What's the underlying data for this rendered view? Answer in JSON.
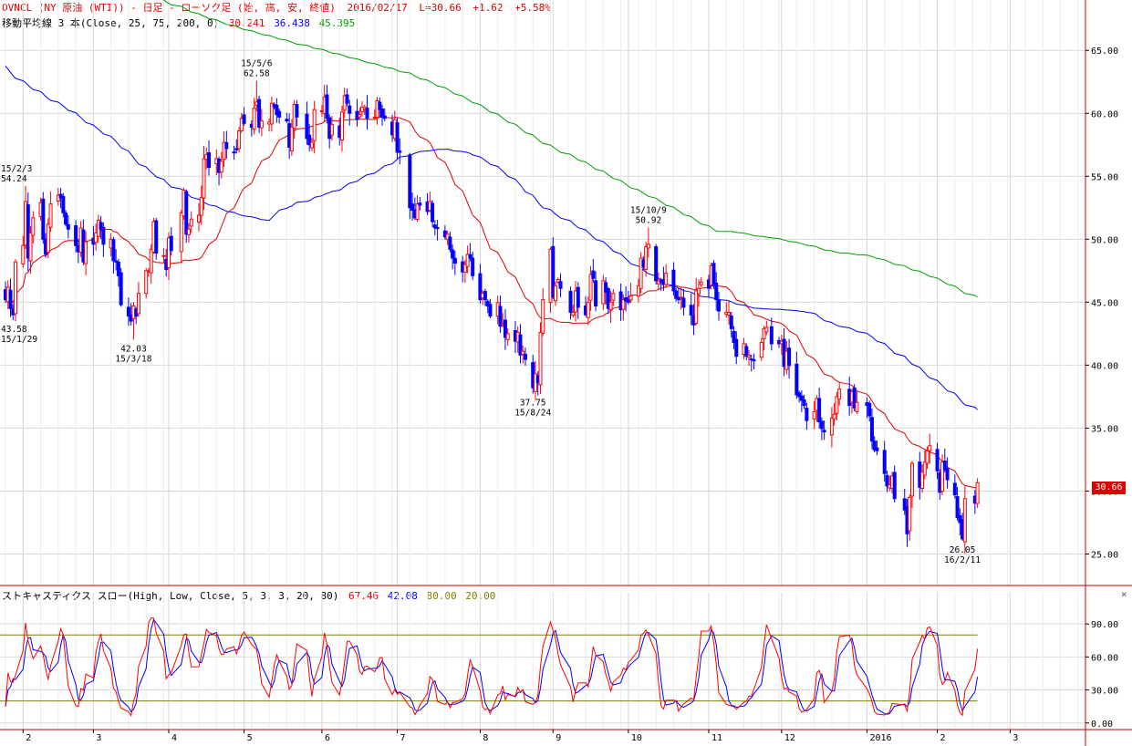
{
  "header": {
    "line1": {
      "symbol": "OVNCL (NY 原油 (WTI)) - 日足 - ローソク足 (始, 高, 安, 終値)",
      "date": "2016/02/17",
      "last": "L=30.66",
      "change": "+1.62",
      "pct": "+5.58%"
    },
    "line2": {
      "label": "移動平均線 3 本(Close, 25, 75, 200, 0)",
      "ma25": "30.241",
      "ma75": "36.438",
      "ma200": "45.395"
    }
  },
  "stoch_header": {
    "label": "ストキャスティクス スロー(High, Low, Close, 5, 3, 3, 20, 80)",
    "k": "67.46",
    "d": "42.08",
    "upper": "80.00",
    "lower": "20.00"
  },
  "close_tag": "30.66",
  "close_button": "×",
  "colors": {
    "up_candle": "#ff0000",
    "down_candle": "#0000ff",
    "ma25": "#e00000",
    "ma75": "#0000ff",
    "ma200": "#00a000",
    "stoch_k": "#ff0000",
    "stoch_d": "#0000ff",
    "levels": "#808000",
    "grid": "#d8d8d8",
    "separator": "#c00000"
  },
  "chart_data": [
    {
      "type": "candlestick",
      "title": "OVNCL (NY 原油 (WTI)) - 日足 - ローソク足 (始, 高, 安, 終値)",
      "ylim": [
        22.5,
        69.0
      ],
      "yticks": [
        "25.00",
        "30.00",
        "35.00",
        "40.00",
        "45.00",
        "50.00",
        "55.00",
        "60.00",
        "65.00"
      ],
      "xticks": [
        "2",
        "3",
        "4",
        "5",
        "6",
        "7",
        "8",
        "9",
        "10",
        "11",
        "12",
        "2016",
        "2",
        "3"
      ],
      "xtick_dates": [
        "2015-02-02",
        "2015-03-02",
        "2015-04-01",
        "2015-05-01",
        "2015-06-01",
        "2015-07-01",
        "2015-08-03",
        "2015-09-01",
        "2015-10-01",
        "2015-11-02",
        "2015-12-01",
        "2016-01-04",
        "2016-02-01",
        "2016-03-01"
      ],
      "x_range": [
        "2015-01-26",
        "2016-03-31"
      ],
      "grid": true,
      "closes": [
        [
          "2015-01-26",
          45.2
        ],
        [
          "2015-01-27",
          46.2
        ],
        [
          "2015-01-28",
          44.5
        ],
        [
          "2015-01-29",
          44.0
        ],
        [
          "2015-01-30",
          48.2
        ],
        [
          "2015-02-02",
          49.5
        ],
        [
          "2015-02-03",
          53.0
        ],
        [
          "2015-02-04",
          48.5
        ],
        [
          "2015-02-05",
          50.5
        ],
        [
          "2015-02-06",
          51.7
        ],
        [
          "2015-02-09",
          52.9
        ],
        [
          "2015-02-10",
          50.0
        ],
        [
          "2015-02-11",
          48.8
        ],
        [
          "2015-02-12",
          51.2
        ],
        [
          "2015-02-13",
          52.8
        ],
        [
          "2015-02-16",
          53.5
        ],
        [
          "2015-02-17",
          53.3
        ],
        [
          "2015-02-18",
          52.1
        ],
        [
          "2015-02-19",
          51.2
        ],
        [
          "2015-02-20",
          50.8
        ],
        [
          "2015-02-23",
          49.5
        ],
        [
          "2015-02-24",
          49.0
        ],
        [
          "2015-02-25",
          50.9
        ],
        [
          "2015-02-26",
          48.2
        ],
        [
          "2015-02-27",
          49.8
        ],
        [
          "2015-03-02",
          49.6
        ],
        [
          "2015-03-03",
          50.5
        ],
        [
          "2015-03-04",
          51.5
        ],
        [
          "2015-03-05",
          50.8
        ],
        [
          "2015-03-06",
          49.6
        ],
        [
          "2015-03-09",
          50.0
        ],
        [
          "2015-03-10",
          48.3
        ],
        [
          "2015-03-11",
          48.2
        ],
        [
          "2015-03-12",
          47.1
        ],
        [
          "2015-03-13",
          44.8
        ],
        [
          "2015-03-16",
          43.9
        ],
        [
          "2015-03-17",
          43.5
        ],
        [
          "2015-03-18",
          44.7
        ],
        [
          "2015-03-19",
          43.9
        ],
        [
          "2015-03-20",
          45.7
        ],
        [
          "2015-03-23",
          47.5
        ],
        [
          "2015-03-24",
          47.5
        ],
        [
          "2015-03-25",
          49.2
        ],
        [
          "2015-03-26",
          51.4
        ],
        [
          "2015-03-27",
          48.9
        ],
        [
          "2015-03-30",
          48.7
        ],
        [
          "2015-03-31",
          47.6
        ],
        [
          "2015-04-01",
          50.1
        ],
        [
          "2015-04-02",
          49.1
        ],
        [
          "2015-04-06",
          52.1
        ],
        [
          "2015-04-07",
          53.9
        ],
        [
          "2015-04-08",
          50.4
        ],
        [
          "2015-04-09",
          50.8
        ],
        [
          "2015-04-10",
          51.6
        ],
        [
          "2015-04-13",
          51.9
        ],
        [
          "2015-04-14",
          53.3
        ],
        [
          "2015-04-15",
          56.4
        ],
        [
          "2015-04-16",
          56.7
        ],
        [
          "2015-04-17",
          55.7
        ],
        [
          "2015-04-20",
          56.4
        ],
        [
          "2015-04-21",
          55.3
        ],
        [
          "2015-04-22",
          56.2
        ],
        [
          "2015-04-23",
          57.7
        ],
        [
          "2015-04-24",
          57.2
        ],
        [
          "2015-04-27",
          56.9
        ],
        [
          "2015-04-28",
          57.1
        ],
        [
          "2015-04-29",
          58.6
        ],
        [
          "2015-04-30",
          59.6
        ],
        [
          "2015-05-01",
          59.2
        ],
        [
          "2015-05-04",
          58.9
        ],
        [
          "2015-05-05",
          60.4
        ],
        [
          "2015-05-06",
          60.9
        ],
        [
          "2015-05-07",
          58.9
        ],
        [
          "2015-05-08",
          59.4
        ],
        [
          "2015-05-11",
          59.3
        ],
        [
          "2015-05-12",
          60.8
        ],
        [
          "2015-05-13",
          60.5
        ],
        [
          "2015-05-14",
          59.9
        ],
        [
          "2015-05-15",
          59.7
        ],
        [
          "2015-05-18",
          59.4
        ],
        [
          "2015-05-19",
          57.3
        ],
        [
          "2015-05-20",
          58.9
        ],
        [
          "2015-05-21",
          60.7
        ],
        [
          "2015-05-22",
          59.7
        ],
        [
          "2015-05-26",
          58.0
        ],
        [
          "2015-05-27",
          57.5
        ],
        [
          "2015-05-28",
          57.7
        ],
        [
          "2015-05-29",
          60.3
        ],
        [
          "2015-06-01",
          60.2
        ],
        [
          "2015-06-02",
          61.3
        ],
        [
          "2015-06-03",
          59.6
        ],
        [
          "2015-06-04",
          58.0
        ],
        [
          "2015-06-05",
          59.1
        ],
        [
          "2015-06-08",
          58.1
        ],
        [
          "2015-06-09",
          60.1
        ],
        [
          "2015-06-10",
          61.4
        ],
        [
          "2015-06-11",
          60.8
        ],
        [
          "2015-06-12",
          60.0
        ],
        [
          "2015-06-15",
          59.5
        ],
        [
          "2015-06-16",
          59.9
        ],
        [
          "2015-06-17",
          60.5
        ],
        [
          "2015-06-18",
          60.5
        ],
        [
          "2015-06-19",
          59.6
        ],
        [
          "2015-06-22",
          59.7
        ],
        [
          "2015-06-23",
          61.0
        ],
        [
          "2015-06-24",
          60.3
        ],
        [
          "2015-06-25",
          59.7
        ],
        [
          "2015-06-26",
          59.6
        ],
        [
          "2015-06-29",
          58.3
        ],
        [
          "2015-06-30",
          59.5
        ],
        [
          "2015-07-01",
          56.9
        ],
        [
          "2015-07-02",
          56.9
        ],
        [
          "2015-07-06",
          52.5
        ],
        [
          "2015-07-07",
          52.3
        ],
        [
          "2015-07-08",
          51.7
        ],
        [
          "2015-07-09",
          52.8
        ],
        [
          "2015-07-10",
          52.7
        ],
        [
          "2015-07-13",
          52.2
        ],
        [
          "2015-07-14",
          53.0
        ],
        [
          "2015-07-15",
          51.4
        ],
        [
          "2015-07-16",
          50.9
        ],
        [
          "2015-07-17",
          50.9
        ],
        [
          "2015-07-20",
          50.2
        ],
        [
          "2015-07-21",
          50.4
        ],
        [
          "2015-07-22",
          49.2
        ],
        [
          "2015-07-23",
          48.5
        ],
        [
          "2015-07-24",
          48.1
        ],
        [
          "2015-07-27",
          47.4
        ],
        [
          "2015-07-28",
          47.98
        ],
        [
          "2015-07-29",
          48.8
        ],
        [
          "2015-07-30",
          48.5
        ],
        [
          "2015-07-31",
          47.1
        ],
        [
          "2015-08-03",
          45.2
        ],
        [
          "2015-08-04",
          45.7
        ],
        [
          "2015-08-05",
          45.2
        ],
        [
          "2015-08-06",
          44.7
        ],
        [
          "2015-08-07",
          43.9
        ],
        [
          "2015-08-10",
          44.96
        ],
        [
          "2015-08-11",
          43.1
        ],
        [
          "2015-08-12",
          43.3
        ],
        [
          "2015-08-13",
          42.2
        ],
        [
          "2015-08-14",
          42.5
        ],
        [
          "2015-08-17",
          41.9
        ],
        [
          "2015-08-18",
          42.6
        ],
        [
          "2015-08-19",
          40.8
        ],
        [
          "2015-08-20",
          41.1
        ],
        [
          "2015-08-21",
          40.45
        ],
        [
          "2015-08-24",
          38.2
        ],
        [
          "2015-08-25",
          39.3
        ],
        [
          "2015-08-26",
          38.6
        ],
        [
          "2015-08-27",
          42.6
        ],
        [
          "2015-08-28",
          45.2
        ],
        [
          "2015-08-31",
          49.2
        ],
        [
          "2015-09-01",
          45.4
        ],
        [
          "2015-09-02",
          46.3
        ],
        [
          "2015-09-03",
          46.8
        ],
        [
          "2015-09-04",
          46.1
        ],
        [
          "2015-09-08",
          44.2
        ],
        [
          "2015-09-09",
          44.2
        ],
        [
          "2015-09-10",
          45.9
        ],
        [
          "2015-09-11",
          44.6
        ],
        [
          "2015-09-14",
          44.0
        ],
        [
          "2015-09-15",
          45.0
        ],
        [
          "2015-09-16",
          47.2
        ],
        [
          "2015-09-17",
          46.9
        ],
        [
          "2015-09-18",
          44.7
        ],
        [
          "2015-09-21",
          46.7
        ],
        [
          "2015-09-22",
          45.8
        ],
        [
          "2015-09-23",
          44.5
        ],
        [
          "2015-09-24",
          45.0
        ],
        [
          "2015-09-25",
          45.7
        ],
        [
          "2015-09-28",
          44.4
        ],
        [
          "2015-09-29",
          45.2
        ],
        [
          "2015-09-30",
          45.1
        ],
        [
          "2015-10-01",
          45.0
        ],
        [
          "2015-10-02",
          45.5
        ],
        [
          "2015-10-05",
          46.3
        ],
        [
          "2015-10-06",
          48.5
        ],
        [
          "2015-10-07",
          47.8
        ],
        [
          "2015-10-08",
          49.4
        ],
        [
          "2015-10-09",
          49.6
        ],
        [
          "2015-10-12",
          46.7
        ],
        [
          "2015-10-13",
          46.7
        ],
        [
          "2015-10-14",
          46.6
        ],
        [
          "2015-10-15",
          46.4
        ],
        [
          "2015-10-16",
          47.3
        ],
        [
          "2015-10-19",
          45.9
        ],
        [
          "2015-10-20",
          45.3
        ],
        [
          "2015-10-21",
          45.2
        ],
        [
          "2015-10-22",
          45.4
        ],
        [
          "2015-10-23",
          44.6
        ],
        [
          "2015-10-26",
          43.98
        ],
        [
          "2015-10-27",
          43.2
        ],
        [
          "2015-10-28",
          45.9
        ],
        [
          "2015-10-29",
          46.1
        ],
        [
          "2015-10-30",
          46.6
        ],
        [
          "2015-11-02",
          46.1
        ],
        [
          "2015-11-03",
          47.9
        ],
        [
          "2015-11-04",
          46.3
        ],
        [
          "2015-11-05",
          45.2
        ],
        [
          "2015-11-06",
          44.3
        ],
        [
          "2015-11-09",
          44.2
        ],
        [
          "2015-11-10",
          44.2
        ],
        [
          "2015-11-11",
          42.9
        ],
        [
          "2015-11-12",
          41.8
        ],
        [
          "2015-11-13",
          40.7
        ],
        [
          "2015-11-16",
          41.7
        ],
        [
          "2015-11-17",
          40.7
        ],
        [
          "2015-11-18",
          40.8
        ],
        [
          "2015-11-19",
          40.5
        ],
        [
          "2015-11-20",
          40.4
        ],
        [
          "2015-11-23",
          41.8
        ],
        [
          "2015-11-24",
          42.9
        ],
        [
          "2015-11-25",
          43.0
        ],
        [
          "2015-11-27",
          41.7
        ],
        [
          "2015-11-30",
          41.7
        ],
        [
          "2015-12-01",
          41.9
        ],
        [
          "2015-12-02",
          39.9
        ],
        [
          "2015-12-03",
          41.1
        ],
        [
          "2015-12-04",
          39.97
        ],
        [
          "2015-12-07",
          37.65
        ],
        [
          "2015-12-08",
          37.5
        ],
        [
          "2015-12-09",
          37.2
        ],
        [
          "2015-12-10",
          36.8
        ],
        [
          "2015-12-11",
          35.6
        ],
        [
          "2015-12-14",
          36.3
        ],
        [
          "2015-12-15",
          37.35
        ],
        [
          "2015-12-16",
          35.5
        ],
        [
          "2015-12-17",
          34.95
        ],
        [
          "2015-12-18",
          34.7
        ],
        [
          "2015-12-21",
          35.8
        ],
        [
          "2015-12-22",
          36.1
        ],
        [
          "2015-12-23",
          37.5
        ],
        [
          "2015-12-24",
          38.1
        ],
        [
          "2015-12-28",
          36.8
        ],
        [
          "2015-12-29",
          37.9
        ],
        [
          "2015-12-30",
          36.6
        ],
        [
          "2015-12-31",
          37.04
        ],
        [
          "2016-01-04",
          36.8
        ],
        [
          "2016-01-05",
          35.97
        ],
        [
          "2016-01-06",
          33.97
        ],
        [
          "2016-01-07",
          33.27
        ],
        [
          "2016-01-08",
          33.2
        ],
        [
          "2016-01-11",
          31.4
        ],
        [
          "2016-01-12",
          30.4
        ],
        [
          "2016-01-13",
          30.5
        ],
        [
          "2016-01-14",
          31.2
        ],
        [
          "2016-01-15",
          29.4
        ],
        [
          "2016-01-19",
          28.5
        ],
        [
          "2016-01-20",
          26.6
        ],
        [
          "2016-01-21",
          29.5
        ],
        [
          "2016-01-22",
          32.2
        ],
        [
          "2016-01-25",
          30.3
        ],
        [
          "2016-01-26",
          31.5
        ],
        [
          "2016-01-27",
          32.3
        ],
        [
          "2016-01-28",
          33.2
        ],
        [
          "2016-01-29",
          33.6
        ],
        [
          "2016-02-01",
          31.6
        ],
        [
          "2016-02-02",
          29.9
        ],
        [
          "2016-02-03",
          32.3
        ],
        [
          "2016-02-04",
          31.7
        ],
        [
          "2016-02-05",
          30.9
        ],
        [
          "2016-02-08",
          29.7
        ],
        [
          "2016-02-09",
          27.9
        ],
        [
          "2016-02-10",
          27.5
        ],
        [
          "2016-02-11",
          26.2
        ],
        [
          "2016-02-12",
          29.4
        ],
        [
          "2016-02-16",
          29.04
        ],
        [
          "2016-02-17",
          30.66
        ]
      ],
      "moving_averages": [
        {
          "name": "25",
          "last": 30.241
        },
        {
          "name": "75",
          "last": 36.438
        },
        {
          "name": "200",
          "last": 45.395
        }
      ],
      "annotations": [
        {
          "date": "2015-01-29",
          "price": 43.58,
          "label_price": "43.58",
          "label_date": "15/1/29",
          "pos": "below"
        },
        {
          "date": "2015-02-03",
          "price": 54.24,
          "label_price": "54.24",
          "label_date": "15/2/3",
          "pos": "above"
        },
        {
          "date": "2015-03-18",
          "price": 42.03,
          "label_price": "42.03",
          "label_date": "15/3/18",
          "pos": "below"
        },
        {
          "date": "2015-05-06",
          "price": 62.58,
          "label_price": "62.58",
          "label_date": "15/5/6",
          "pos": "above"
        },
        {
          "date": "2015-08-24",
          "price": 37.75,
          "label_price": "37.75",
          "label_date": "15/8/24",
          "pos": "below"
        },
        {
          "date": "2015-10-09",
          "price": 50.92,
          "label_price": "50.92",
          "label_date": "15/10/9",
          "pos": "above"
        },
        {
          "date": "2016-02-11",
          "price": 26.05,
          "label_price": "26.05",
          "label_date": "16/2/11",
          "pos": "below"
        }
      ]
    },
    {
      "type": "line",
      "title": "ストキャスティクス スロー(High, Low, Close, 5, 3, 3, 20, 80)",
      "ylim": [
        -6,
        110
      ],
      "yticks": [
        "0.00",
        "30.00",
        "60.00",
        "90.00"
      ],
      "levels": [
        80,
        20
      ],
      "series": [
        {
          "name": "%K",
          "last": 67.46
        },
        {
          "name": "%D",
          "last": 42.08
        }
      ]
    }
  ]
}
